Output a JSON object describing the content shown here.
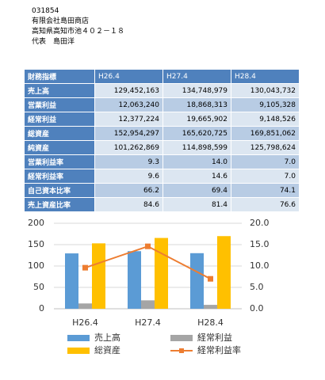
{
  "header": {
    "lines": [
      "031854",
      "有限会社島田商店",
      "高知県高知市池４０２－１８",
      "代表　島田洋"
    ]
  },
  "table": {
    "header": [
      "財務指標",
      "H26.4",
      "H27.4",
      "H28.4"
    ],
    "rows": [
      [
        "売上高",
        "129,452,163",
        "134,748,979",
        "130,043,732"
      ],
      [
        "営業利益",
        "12,063,240",
        "18,868,313",
        "9,105,328"
      ],
      [
        "経常利益",
        "12,377,224",
        "19,665,902",
        "9,148,526"
      ],
      [
        "総資産",
        "152,954,297",
        "165,620,725",
        "169,851,062"
      ],
      [
        "純資産",
        "101,262,869",
        "114,898,599",
        "125,798,624"
      ],
      [
        "営業利益率",
        "9.3",
        "14.0",
        "7.0"
      ],
      [
        "経常利益率",
        "9.6",
        "14.6",
        "7.0"
      ],
      [
        "自己資本比率",
        "66.2",
        "69.4",
        "74.1"
      ],
      [
        "売上資産比率",
        "84.6",
        "81.4",
        "76.6"
      ]
    ]
  },
  "chart_data": {
    "type": "bar",
    "categories": [
      "H26.4",
      "H27.4",
      "H28.4"
    ],
    "series": [
      {
        "name": "売上高",
        "color": "#5b9bd5",
        "values": [
          129.5,
          134.7,
          130.0
        ]
      },
      {
        "name": "経常利益",
        "color": "#a5a5a5",
        "values": [
          12.4,
          19.7,
          9.1
        ]
      },
      {
        "name": "総資産",
        "color": "#ffc000",
        "values": [
          153.0,
          165.6,
          169.9
        ]
      },
      {
        "name": "経常利益率",
        "color": "#ed7d31",
        "values": [
          9.6,
          14.6,
          7.0
        ],
        "axis": "y2",
        "type": "line"
      }
    ],
    "ylim": [
      0,
      200
    ],
    "yticks": [
      0,
      50,
      100,
      150,
      200
    ],
    "y2lim": [
      0,
      20
    ],
    "y2ticks": [
      {
        "value": 0,
        "label": "0.0"
      },
      {
        "value": 5,
        "label": "5.0"
      },
      {
        "value": 10,
        "label": "10.0"
      },
      {
        "value": 15,
        "label": "15.0"
      },
      {
        "value": 20,
        "label": "20.0"
      }
    ],
    "grid": true
  }
}
